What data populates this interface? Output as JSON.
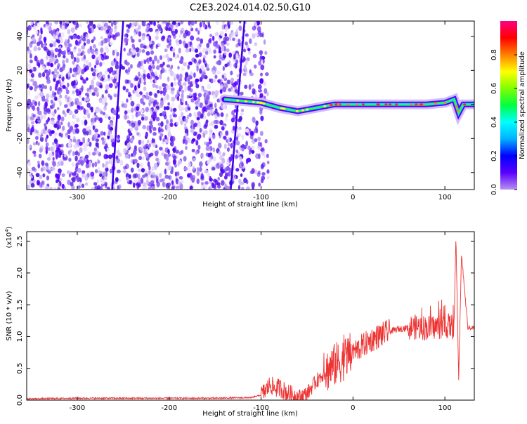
{
  "title": "C2E3.2024.014.02.50.G10",
  "chart_data": [
    {
      "type": "heatmap",
      "xlabel": "Height of straight line (km)",
      "ylabel": "Frequency (Hz)",
      "xlim": [
        -355,
        132
      ],
      "ylim": [
        -50,
        49
      ],
      "x_ticks": [
        -300,
        -200,
        -100,
        0,
        100
      ],
      "y_ticks": [
        -40,
        -20,
        0,
        20,
        40
      ],
      "colorbar": {
        "label": "Normalized spectral amplitude",
        "range": [
          0.0,
          1.0
        ],
        "ticks": [
          "0.0",
          "0.2",
          "0.4",
          "0.6",
          "0.8"
        ],
        "colors": [
          "#b890f0",
          "#5a00ff",
          "#0000ff",
          "#00b0ff",
          "#00ffff",
          "#00ff40",
          "#80ff00",
          "#ffff00",
          "#ff8000",
          "#ff0000",
          "#ff0080"
        ]
      },
      "ridge": [
        [
          -140,
          3
        ],
        [
          -120,
          2
        ],
        [
          -100,
          1
        ],
        [
          -80,
          -2
        ],
        [
          -60,
          -4
        ],
        [
          -40,
          -2
        ],
        [
          -20,
          0
        ],
        [
          0,
          0
        ],
        [
          20,
          0
        ],
        [
          40,
          0
        ],
        [
          60,
          0
        ],
        [
          80,
          0
        ],
        [
          100,
          1
        ],
        [
          110,
          3
        ],
        [
          115,
          -5
        ],
        [
          120,
          0
        ],
        [
          132,
          0
        ]
      ],
      "lines": [
        {
          "x": [
            -262,
            -250
          ],
          "y": [
            -50,
            49
          ]
        },
        {
          "x": [
            -133,
            -118
          ],
          "y": [
            -50,
            49
          ]
        }
      ]
    },
    {
      "type": "line",
      "xlabel": "Height of straight line (km)",
      "ylabel": "SNR (10 * v/v)",
      "y_multiplier": "(x10",
      "y_multiplier_exp": "4",
      "xlim": [
        -355,
        132
      ],
      "ylim": [
        0,
        2.65
      ],
      "x_ticks": [
        -300,
        -200,
        -100,
        0,
        100
      ],
      "y_ticks": [
        0.0,
        0.5,
        1.0,
        1.5,
        2.0,
        2.5
      ],
      "color": "#ee3333",
      "series": [
        {
          "x": [
            -355,
            -300,
            -250,
            -200,
            -150,
            -110,
            -100,
            -95,
            -90,
            -85,
            -80,
            -75,
            -70,
            -60,
            -50,
            -40,
            -30,
            -20,
            -10,
            0,
            10,
            20,
            30,
            40,
            50,
            60,
            70,
            80,
            90,
            100,
            105,
            110,
            112,
            115,
            118,
            125,
            132
          ],
          "y": [
            0.02,
            0.03,
            0.03,
            0.03,
            0.03,
            0.04,
            0.08,
            0.15,
            0.25,
            0.18,
            0.2,
            0.15,
            0.1,
            0.05,
            0.1,
            0.3,
            0.45,
            0.55,
            0.65,
            0.75,
            0.85,
            0.95,
            1.02,
            1.08,
            1.12,
            1.14,
            1.15,
            1.14,
            1.15,
            1.16,
            1.17,
            1.15,
            2.6,
            0.3,
            2.3,
            1.14,
            1.14
          ]
        }
      ]
    }
  ]
}
